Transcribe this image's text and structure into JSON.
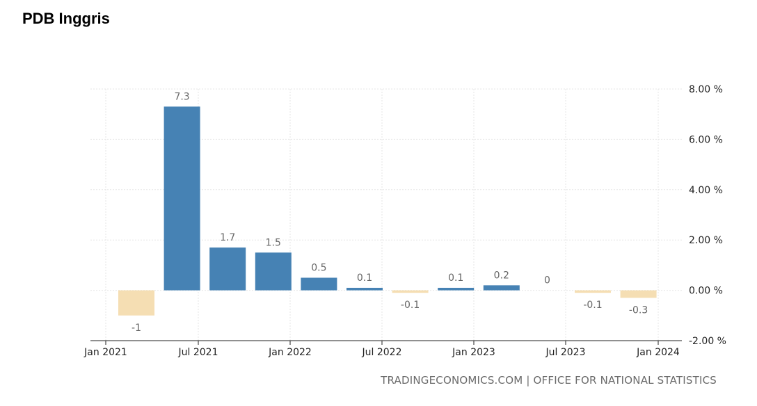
{
  "title": "PDB Inggris",
  "source": "TRADINGECONOMICS.COM | OFFICE FOR NATIONAL STATISTICS",
  "colors": {
    "positive": "#4682b4",
    "negative": "#f5deb3",
    "grid": "#e6e6e6",
    "axis": "#222222"
  },
  "chart_data": {
    "type": "bar",
    "title": "PDB Inggris",
    "xlabel": "",
    "ylabel": "",
    "categories": [
      "Q1 2021",
      "Q2 2021",
      "Q3 2021",
      "Q4 2021",
      "Q1 2022",
      "Q2 2022",
      "Q3 2022",
      "Q4 2022",
      "Q1 2023",
      "Q2 2023",
      "Q3 2023",
      "Q4 2023"
    ],
    "values": [
      -1,
      7.3,
      1.7,
      1.5,
      0.5,
      0.1,
      -0.1,
      0.1,
      0.2,
      0,
      -0.1,
      -0.3
    ],
    "data_labels": [
      "-1",
      "7.3",
      "1.7",
      "1.5",
      "0.5",
      "0.1",
      "-0.1",
      "0.1",
      "0.2",
      "0",
      "-0.1",
      "-0.3"
    ],
    "ylim": [
      -2,
      8
    ],
    "y_ticks": [
      8,
      6,
      4,
      2,
      0,
      -2
    ],
    "y_tick_labels": [
      "8.00 %",
      "6.00 %",
      "4.00 %",
      "2.00 %",
      "0.00 %",
      "-2.00 %"
    ],
    "x_ticks": [
      "Jan 2021",
      "Jul 2021",
      "Jan 2022",
      "Jul 2022",
      "Jan 2023",
      "Jul 2023",
      "Jan 2024"
    ],
    "y_axis_position": "right",
    "grid": true
  }
}
